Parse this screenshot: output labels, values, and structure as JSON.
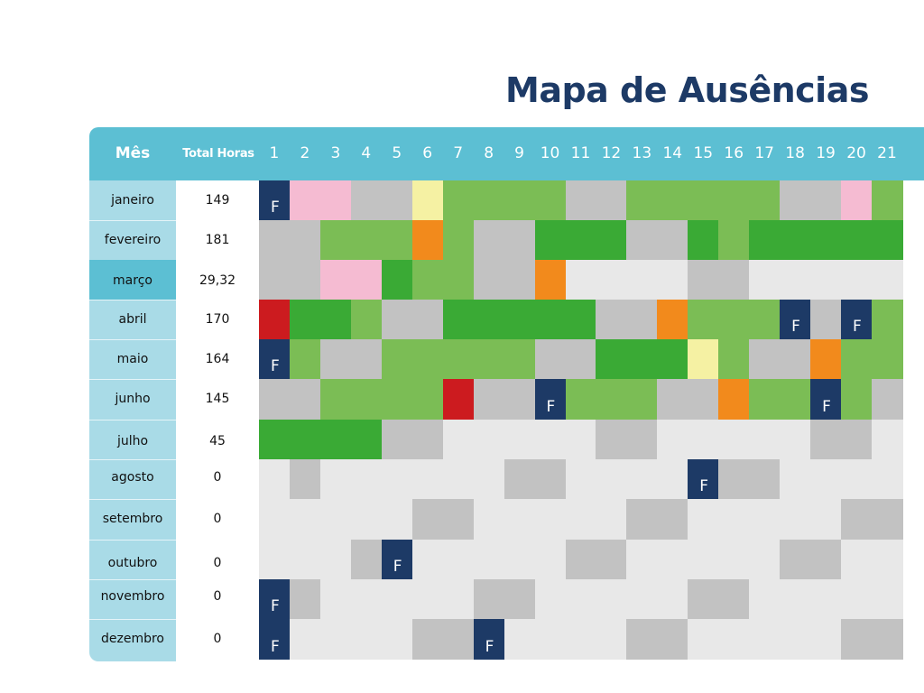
{
  "title": "Mapa de Ausências",
  "header": {
    "mes": "Mês",
    "total": "Total Horas",
    "days": [
      "1",
      "2",
      "3",
      "4",
      "5",
      "6",
      "7",
      "8",
      "9",
      "10",
      "11",
      "12",
      "13",
      "14",
      "15",
      "16",
      "17",
      "18",
      "19",
      "20",
      "21"
    ]
  },
  "legend_codes": {
    "G": "#7bbd55",
    "D": "#3aaa35",
    "L": "#c2c2c2",
    "E": "#e8e8e8",
    "P": "#f5bbd2",
    "Y": "#f5f1a3",
    "O": "#f28a1c",
    "R": "#cc1b1f",
    "F": "#1d3a66"
  },
  "holiday_letter": "F",
  "active_month": "março",
  "months": [
    {
      "name": "janeiro",
      "total": "149",
      "cells": [
        "F",
        "P",
        "P",
        "L",
        "L",
        "Y",
        "G",
        "G",
        "G",
        "G",
        "L",
        "L",
        "G",
        "G",
        "G",
        "G",
        "G",
        "L",
        "L",
        "P",
        "G"
      ]
    },
    {
      "name": "fevereiro",
      "total": "181",
      "cells": [
        "L",
        "L",
        "G",
        "G",
        "G",
        "O",
        "G",
        "L",
        "L",
        "D",
        "D",
        "D",
        "L",
        "L",
        "D",
        "G",
        "D",
        "D",
        "D",
        "D",
        "D"
      ]
    },
    {
      "name": "março",
      "total": "29,32",
      "cells": [
        "L",
        "L",
        "P",
        "P",
        "D",
        "G",
        "G",
        "L",
        "L",
        "O",
        "E",
        "E",
        "E",
        "E",
        "L",
        "L",
        "E",
        "E",
        "E",
        "E",
        "E"
      ]
    },
    {
      "name": "abril",
      "total": "170",
      "cells": [
        "R",
        "D",
        "D",
        "G",
        "L",
        "L",
        "D",
        "D",
        "D",
        "D",
        "D",
        "L",
        "L",
        "O",
        "G",
        "G",
        "G",
        "F",
        "L",
        "F",
        "G"
      ]
    },
    {
      "name": "maio",
      "total": "164",
      "cells": [
        "F",
        "G",
        "L",
        "L",
        "G",
        "G",
        "G",
        "G",
        "G",
        "L",
        "L",
        "D",
        "D",
        "D",
        "Y",
        "G",
        "L",
        "L",
        "O",
        "G",
        "G"
      ]
    },
    {
      "name": "junho",
      "total": "145",
      "cells": [
        "L",
        "L",
        "G",
        "G",
        "G",
        "G",
        "R",
        "L",
        "L",
        "F",
        "G",
        "G",
        "G",
        "L",
        "L",
        "O",
        "G",
        "G",
        "F",
        "G",
        "L"
      ]
    },
    {
      "name": "julho",
      "total": "45",
      "cells": [
        "D",
        "D",
        "D",
        "D",
        "L",
        "L",
        "E",
        "E",
        "E",
        "E",
        "E",
        "L",
        "L",
        "E",
        "E",
        "E",
        "E",
        "E",
        "L",
        "L",
        "E"
      ]
    },
    {
      "name": "agosto",
      "total": "0",
      "cells": [
        "E",
        "L",
        "E",
        "E",
        "E",
        "E",
        "E",
        "E",
        "L",
        "L",
        "E",
        "E",
        "E",
        "E",
        "F",
        "L",
        "L",
        "E",
        "E",
        "E",
        "E"
      ]
    },
    {
      "name": "setembro",
      "total": "0",
      "cells": [
        "E",
        "E",
        "E",
        "E",
        "E",
        "L",
        "L",
        "E",
        "E",
        "E",
        "E",
        "E",
        "L",
        "L",
        "E",
        "E",
        "E",
        "E",
        "E",
        "L",
        "L"
      ]
    },
    {
      "name": "outubro",
      "total": "0",
      "cells": [
        "E",
        "E",
        "E",
        "L",
        "F",
        "E",
        "E",
        "E",
        "E",
        "E",
        "L",
        "L",
        "E",
        "E",
        "E",
        "E",
        "E",
        "L",
        "L",
        "E",
        "E"
      ]
    },
    {
      "name": "novembro",
      "total": "0",
      "cells": [
        "F",
        "L",
        "E",
        "E",
        "E",
        "E",
        "E",
        "L",
        "L",
        "E",
        "E",
        "E",
        "E",
        "E",
        "L",
        "L",
        "E",
        "E",
        "E",
        "E",
        "E"
      ]
    },
    {
      "name": "dezembro",
      "total": "0",
      "cells": [
        "F",
        "E",
        "E",
        "E",
        "E",
        "L",
        "L",
        "F",
        "E",
        "E",
        "E",
        "E",
        "L",
        "L",
        "E",
        "E",
        "E",
        "E",
        "E",
        "L",
        "L"
      ]
    }
  ]
}
